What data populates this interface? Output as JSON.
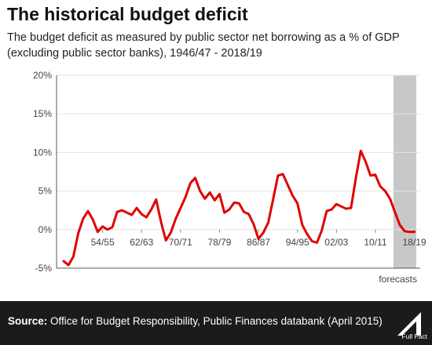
{
  "header": {
    "title": "The historical budget deficit",
    "subtitle": "The budget deficit as measured by public sector net borrowing as a % of GDP (excluding public sector banks), 1946/47 - 2018/19"
  },
  "footer": {
    "source_label": "Source:",
    "source_text": "Office for Budget Responsibility, Public Finances databank (April 2015)",
    "logo_text": "Full Fact"
  },
  "chart_data": {
    "type": "line",
    "title": "The historical budget deficit",
    "ylabel": "",
    "xlabel": "",
    "ylim": [
      -5,
      20
    ],
    "yticks": [
      "20%",
      "15%",
      "10%",
      "5%",
      "0%",
      "-5%"
    ],
    "ytick_values": [
      20,
      15,
      10,
      5,
      0,
      -5
    ],
    "xtick_labels": [
      "54/55",
      "62/63",
      "70/71",
      "78/79",
      "86/87",
      "94/95",
      "02/03",
      "10/11",
      "18/19"
    ],
    "xtick_years": [
      1954,
      1962,
      1970,
      1978,
      1986,
      1994,
      2002,
      2010,
      2018
    ],
    "x_start": 1946,
    "x_end": 2018,
    "forecast_label": "forecasts",
    "forecast_start": 2014,
    "grid": true,
    "line_color": "#e00000",
    "forecast_color": "#c8c8c8",
    "series": [
      {
        "name": "",
        "x": [
          1946,
          1947,
          1948,
          1949,
          1950,
          1951,
          1952,
          1953,
          1954,
          1955,
          1956,
          1957,
          1958,
          1959,
          1960,
          1961,
          1962,
          1963,
          1964,
          1965,
          1966,
          1967,
          1968,
          1969,
          1970,
          1971,
          1972,
          1973,
          1974,
          1975,
          1976,
          1977,
          1978,
          1979,
          1980,
          1981,
          1982,
          1983,
          1984,
          1985,
          1986,
          1987,
          1988,
          1989,
          1990,
          1991,
          1992,
          1993,
          1994,
          1995,
          1996,
          1997,
          1998,
          1999,
          2000,
          2001,
          2002,
          2003,
          2004,
          2005,
          2006,
          2007,
          2008,
          2009,
          2010,
          2011,
          2012,
          2013,
          2014,
          2015,
          2016,
          2017,
          2018
        ],
        "values": [
          -4.1,
          -4.6,
          -3.5,
          -0.5,
          1.4,
          2.4,
          1.3,
          -0.3,
          0.4,
          0.0,
          0.3,
          2.3,
          2.5,
          2.2,
          1.9,
          2.8,
          2.0,
          1.6,
          2.6,
          3.9,
          1.0,
          -1.4,
          -0.4,
          1.4,
          2.8,
          4.2,
          6.0,
          6.7,
          5.0,
          4.0,
          4.8,
          3.8,
          4.6,
          2.2,
          2.6,
          3.5,
          3.4,
          2.3,
          2.0,
          0.7,
          -1.2,
          -0.4,
          0.9,
          3.9,
          7.0,
          7.2,
          5.8,
          4.4,
          3.4,
          0.6,
          -0.6,
          -1.5,
          -1.7,
          -0.1,
          2.4,
          2.6,
          3.3,
          3.0,
          2.7,
          2.8,
          6.7,
          10.2,
          8.8,
          7.0,
          7.1,
          5.6,
          5.0,
          4.0,
          2.3,
          0.6,
          -0.2,
          -0.3,
          -0.3
        ]
      }
    ]
  }
}
